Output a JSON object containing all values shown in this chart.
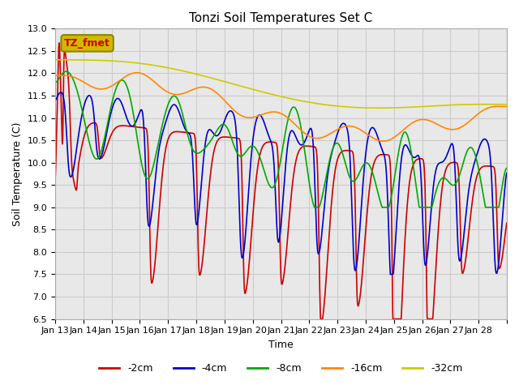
{
  "title": "Tonzi Soil Temperatures Set C",
  "xlabel": "Time",
  "ylabel": "Soil Temperature (C)",
  "annotation_label": "TZ_fmet",
  "annotation_bg": "#d4b800",
  "annotation_text_color": "#cc0000",
  "annotation_edge_color": "#888800",
  "ylim": [
    6.5,
    13.0
  ],
  "yticks": [
    6.5,
    7.0,
    7.5,
    8.0,
    8.5,
    9.0,
    9.5,
    10.0,
    10.5,
    11.0,
    11.5,
    12.0,
    12.5,
    13.0
  ],
  "xtick_labels": [
    "Jan 13",
    "Jan 14",
    "Jan 15",
    "Jan 16",
    "Jan 17",
    "Jan 18",
    "Jan 19",
    "Jan 20",
    "Jan 21",
    "Jan 22",
    "Jan 23",
    "Jan 24",
    "Jan 25",
    "Jan 26",
    "Jan 27",
    "Jan 28"
  ],
  "series_colors": [
    "#cc0000",
    "#0000cc",
    "#00aa00",
    "#ff8800",
    "#cccc00"
  ],
  "series_labels": [
    "-2cm",
    "-4cm",
    "-8cm",
    "-16cm",
    "-32cm"
  ],
  "line_width": 1.2,
  "grid_color": "#cccccc",
  "bg_color": "#e8e8e8",
  "fig_bg_color": "#ffffff"
}
